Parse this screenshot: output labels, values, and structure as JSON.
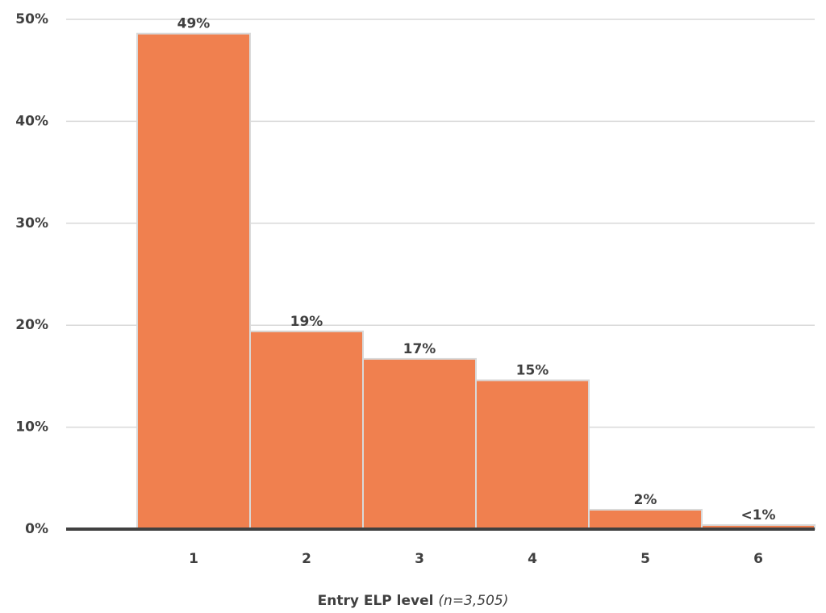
{
  "chart_data": {
    "type": "bar",
    "x_label": "Entry ELP level",
    "x_label_note": "(n=3,505)",
    "categories": [
      "1",
      "2",
      "3",
      "4",
      "5",
      "6"
    ],
    "values": [
      48.6,
      19.4,
      16.7,
      14.6,
      1.9,
      0.4
    ],
    "value_labels": [
      "49%",
      "19%",
      "17%",
      "15%",
      "2%",
      "<1%"
    ],
    "color": "#f0804f",
    "ylim": [
      0,
      50
    ],
    "yticks": [
      {
        "value": 0,
        "label": "0%"
      },
      {
        "value": 10,
        "label": "10%"
      },
      {
        "value": 20,
        "label": "20%"
      },
      {
        "value": 30,
        "label": "30%"
      },
      {
        "value": 40,
        "label": "40%"
      },
      {
        "value": 50,
        "label": "50%"
      }
    ],
    "grid": true
  }
}
